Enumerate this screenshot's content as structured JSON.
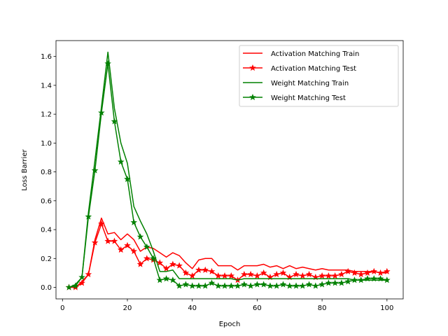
{
  "chart_data": {
    "type": "line",
    "title": "",
    "xlabel": "Epoch",
    "ylabel": "Loss Barrier",
    "xlim": [
      -2,
      105
    ],
    "ylim": [
      -0.08,
      1.71
    ],
    "xticks": [
      0,
      20,
      40,
      60,
      80,
      100
    ],
    "yticks": [
      0.0,
      0.2,
      0.4,
      0.6,
      0.8,
      1.0,
      1.2,
      1.4,
      1.6
    ],
    "ytick_labels": [
      "0.0",
      "0.2",
      "0.4",
      "0.6",
      "0.8",
      "1.0",
      "1.2",
      "1.4",
      "1.6"
    ],
    "legend": "top-right",
    "grid": false,
    "x": [
      2,
      4,
      6,
      8,
      10,
      12,
      14,
      16,
      18,
      20,
      22,
      24,
      26,
      28,
      30,
      32,
      34,
      36,
      38,
      40,
      42,
      44,
      46,
      48,
      50,
      52,
      54,
      56,
      58,
      60,
      62,
      64,
      66,
      68,
      70,
      72,
      74,
      76,
      78,
      80,
      82,
      84,
      86,
      88,
      90,
      92,
      94,
      96,
      98,
      100
    ],
    "series": [
      {
        "name": "Activation Matching Train",
        "color": "#ff0000",
        "marker": "none",
        "values": [
          0.0,
          0.0,
          0.04,
          0.09,
          0.33,
          0.48,
          0.37,
          0.38,
          0.33,
          0.37,
          0.33,
          0.25,
          0.28,
          0.27,
          0.24,
          0.21,
          0.24,
          0.22,
          0.17,
          0.13,
          0.19,
          0.2,
          0.2,
          0.15,
          0.15,
          0.15,
          0.12,
          0.15,
          0.15,
          0.15,
          0.16,
          0.14,
          0.15,
          0.13,
          0.15,
          0.13,
          0.14,
          0.13,
          0.12,
          0.13,
          0.12,
          0.12,
          0.12,
          0.12,
          0.11,
          0.11,
          0.11,
          0.11,
          0.1,
          0.1
        ]
      },
      {
        "name": "Activation Matching Test",
        "color": "#ff0000",
        "marker": "star",
        "values": [
          0.0,
          0.0,
          0.03,
          0.09,
          0.31,
          0.44,
          0.32,
          0.32,
          0.26,
          0.29,
          0.25,
          0.16,
          0.2,
          0.19,
          0.17,
          0.13,
          0.16,
          0.15,
          0.1,
          0.08,
          0.12,
          0.12,
          0.11,
          0.08,
          0.08,
          0.08,
          0.05,
          0.09,
          0.09,
          0.08,
          0.1,
          0.07,
          0.09,
          0.1,
          0.07,
          0.09,
          0.08,
          0.09,
          0.07,
          0.08,
          0.08,
          0.08,
          0.09,
          0.11,
          0.1,
          0.09,
          0.1,
          0.11,
          0.1,
          0.11
        ]
      },
      {
        "name": "Weight Matching Train",
        "color": "#008000",
        "marker": "none",
        "values": [
          0.0,
          0.02,
          0.07,
          0.52,
          0.88,
          1.25,
          1.63,
          1.24,
          1.0,
          0.86,
          0.56,
          0.46,
          0.37,
          0.25,
          0.11,
          0.11,
          0.12,
          0.06,
          0.06,
          0.06,
          0.06,
          0.06,
          0.06,
          0.06,
          0.06,
          0.06,
          0.05,
          0.06,
          0.06,
          0.06,
          0.06,
          0.06,
          0.06,
          0.06,
          0.06,
          0.06,
          0.06,
          0.06,
          0.06,
          0.06,
          0.06,
          0.06,
          0.06,
          0.06,
          0.05,
          0.05,
          0.05,
          0.05,
          0.05,
          0.05
        ]
      },
      {
        "name": "Weight Matching Test",
        "color": "#008000",
        "marker": "star",
        "values": [
          0.0,
          0.01,
          0.07,
          0.49,
          0.81,
          1.21,
          1.55,
          1.15,
          0.87,
          0.75,
          0.45,
          0.35,
          0.28,
          0.2,
          0.05,
          0.06,
          0.05,
          0.01,
          0.02,
          0.01,
          0.01,
          0.01,
          0.03,
          0.01,
          0.01,
          0.01,
          0.01,
          0.02,
          0.01,
          0.02,
          0.02,
          0.01,
          0.01,
          0.02,
          0.01,
          0.01,
          0.01,
          0.02,
          0.01,
          0.02,
          0.03,
          0.03,
          0.03,
          0.04,
          0.05,
          0.05,
          0.06,
          0.06,
          0.06,
          0.05
        ]
      }
    ]
  }
}
